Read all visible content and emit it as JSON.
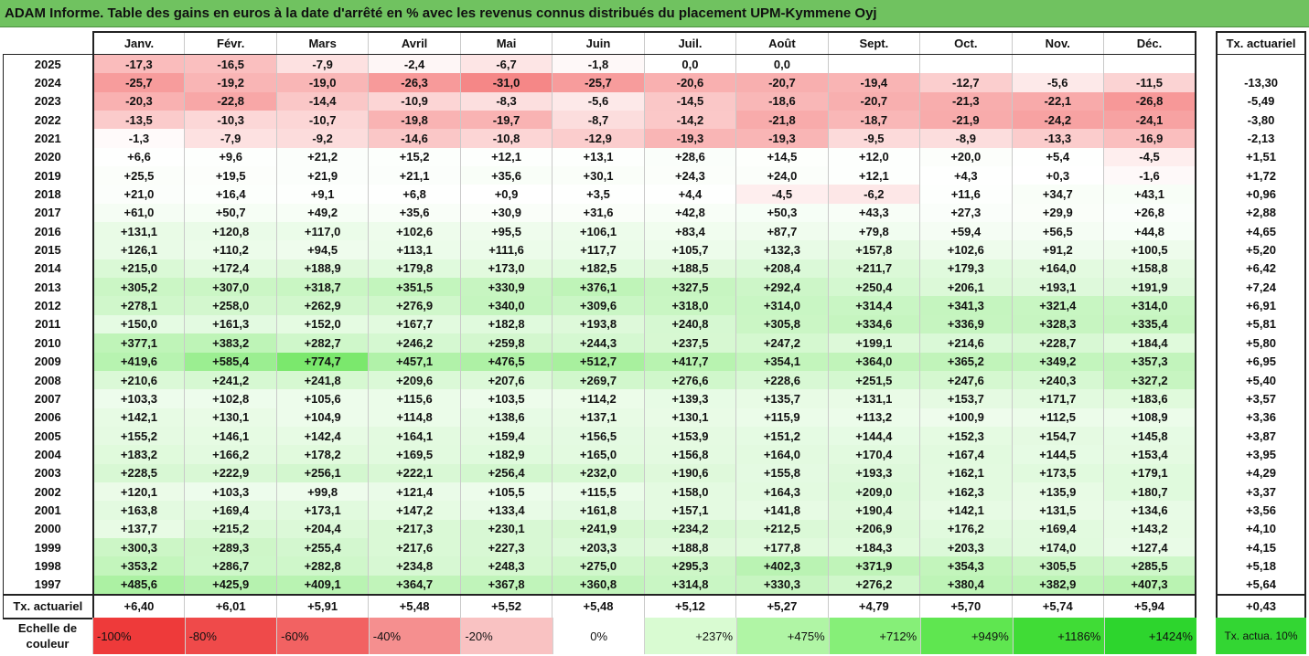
{
  "title": "ADAM Informe. Table des gains en euros à la date d'arrêté en % avec les revenus connus distribués du placement UPM-Kymmene Oyj",
  "chart_data": {
    "type": "table",
    "columns": [
      "Janv.",
      "Févr.",
      "Mars",
      "Avril",
      "Mai",
      "Juin",
      "Juil.",
      "Août",
      "Sept.",
      "Oct.",
      "Nov.",
      "Déc."
    ],
    "rate_header": "Tx. actuariel",
    "rows": [
      {
        "year": "2025",
        "values": [
          "-17,3",
          "-16,5",
          "-7,9",
          "-2,4",
          "-6,7",
          "-1,8",
          "0,0",
          "0,0",
          "",
          "",
          "",
          ""
        ],
        "rate": ""
      },
      {
        "year": "2024",
        "values": [
          "-25,7",
          "-19,2",
          "-19,0",
          "-26,3",
          "-31,0",
          "-25,7",
          "-20,6",
          "-20,7",
          "-19,4",
          "-12,7",
          "-5,6",
          "-11,5"
        ],
        "rate": "-13,30"
      },
      {
        "year": "2023",
        "values": [
          "-20,3",
          "-22,8",
          "-14,4",
          "-10,9",
          "-8,3",
          "-5,6",
          "-14,5",
          "-18,6",
          "-20,7",
          "-21,3",
          "-22,1",
          "-26,8"
        ],
        "rate": "-5,49"
      },
      {
        "year": "2022",
        "values": [
          "-13,5",
          "-10,3",
          "-10,7",
          "-19,8",
          "-19,7",
          "-8,7",
          "-14,2",
          "-21,8",
          "-18,7",
          "-21,9",
          "-24,2",
          "-24,1"
        ],
        "rate": "-3,80"
      },
      {
        "year": "2021",
        "values": [
          "-1,3",
          "-7,9",
          "-9,2",
          "-14,6",
          "-10,8",
          "-12,9",
          "-19,3",
          "-19,3",
          "-9,5",
          "-8,9",
          "-13,3",
          "-16,9"
        ],
        "rate": "-2,13"
      },
      {
        "year": "2020",
        "values": [
          "+6,6",
          "+9,6",
          "+21,2",
          "+15,2",
          "+12,1",
          "+13,1",
          "+28,6",
          "+14,5",
          "+12,0",
          "+20,0",
          "+5,4",
          "-4,5"
        ],
        "rate": "+1,51"
      },
      {
        "year": "2019",
        "values": [
          "+25,5",
          "+19,5",
          "+21,9",
          "+21,1",
          "+35,6",
          "+30,1",
          "+24,3",
          "+24,0",
          "+12,1",
          "+4,3",
          "+0,3",
          "-1,6"
        ],
        "rate": "+1,72"
      },
      {
        "year": "2018",
        "values": [
          "+21,0",
          "+16,4",
          "+9,1",
          "+6,8",
          "+0,9",
          "+3,5",
          "+4,4",
          "-4,5",
          "-6,2",
          "+11,6",
          "+34,7",
          "+43,1"
        ],
        "rate": "+0,96"
      },
      {
        "year": "2017",
        "values": [
          "+61,0",
          "+50,7",
          "+49,2",
          "+35,6",
          "+30,9",
          "+31,6",
          "+42,8",
          "+50,3",
          "+43,3",
          "+27,3",
          "+29,9",
          "+26,8"
        ],
        "rate": "+2,88"
      },
      {
        "year": "2016",
        "values": [
          "+131,1",
          "+120,8",
          "+117,0",
          "+102,6",
          "+95,5",
          "+106,1",
          "+83,4",
          "+87,7",
          "+79,8",
          "+59,4",
          "+56,5",
          "+44,8"
        ],
        "rate": "+4,65"
      },
      {
        "year": "2015",
        "values": [
          "+126,1",
          "+110,2",
          "+94,5",
          "+113,1",
          "+111,6",
          "+117,7",
          "+105,7",
          "+132,3",
          "+157,8",
          "+102,6",
          "+91,2",
          "+100,5"
        ],
        "rate": "+5,20"
      },
      {
        "year": "2014",
        "values": [
          "+215,0",
          "+172,4",
          "+188,9",
          "+179,8",
          "+173,0",
          "+182,5",
          "+188,5",
          "+208,4",
          "+211,7",
          "+179,3",
          "+164,0",
          "+158,8"
        ],
        "rate": "+6,42"
      },
      {
        "year": "2013",
        "values": [
          "+305,2",
          "+307,0",
          "+318,7",
          "+351,5",
          "+330,9",
          "+376,1",
          "+327,5",
          "+292,4",
          "+250,4",
          "+206,1",
          "+193,1",
          "+191,9"
        ],
        "rate": "+7,24"
      },
      {
        "year": "2012",
        "values": [
          "+278,1",
          "+258,0",
          "+262,9",
          "+276,9",
          "+340,0",
          "+309,6",
          "+318,0",
          "+314,0",
          "+314,4",
          "+341,3",
          "+321,4",
          "+314,0"
        ],
        "rate": "+6,91"
      },
      {
        "year": "2011",
        "values": [
          "+150,0",
          "+161,3",
          "+152,0",
          "+167,7",
          "+182,8",
          "+193,8",
          "+240,8",
          "+305,8",
          "+334,6",
          "+336,9",
          "+328,3",
          "+335,4"
        ],
        "rate": "+5,81"
      },
      {
        "year": "2010",
        "values": [
          "+377,1",
          "+383,2",
          "+282,7",
          "+246,2",
          "+259,8",
          "+244,3",
          "+237,5",
          "+247,2",
          "+199,1",
          "+214,6",
          "+228,7",
          "+184,4"
        ],
        "rate": "+5,80"
      },
      {
        "year": "2009",
        "values": [
          "+419,6",
          "+585,4",
          "+774,7",
          "+457,1",
          "+476,5",
          "+512,7",
          "+417,7",
          "+354,1",
          "+364,0",
          "+365,2",
          "+349,2",
          "+357,3"
        ],
        "rate": "+6,95"
      },
      {
        "year": "2008",
        "values": [
          "+210,6",
          "+241,2",
          "+241,8",
          "+209,6",
          "+207,6",
          "+269,7",
          "+276,6",
          "+228,6",
          "+251,5",
          "+247,6",
          "+240,3",
          "+327,2"
        ],
        "rate": "+5,40"
      },
      {
        "year": "2007",
        "values": [
          "+103,3",
          "+102,8",
          "+105,6",
          "+115,6",
          "+103,5",
          "+114,2",
          "+139,3",
          "+135,7",
          "+131,1",
          "+153,7",
          "+171,7",
          "+183,6"
        ],
        "rate": "+3,57"
      },
      {
        "year": "2006",
        "values": [
          "+142,1",
          "+130,1",
          "+104,9",
          "+114,8",
          "+138,6",
          "+137,1",
          "+130,1",
          "+115,9",
          "+113,2",
          "+100,9",
          "+112,5",
          "+108,9"
        ],
        "rate": "+3,36"
      },
      {
        "year": "2005",
        "values": [
          "+155,2",
          "+146,1",
          "+142,4",
          "+164,1",
          "+159,4",
          "+156,5",
          "+153,9",
          "+151,2",
          "+144,4",
          "+152,3",
          "+154,7",
          "+145,8"
        ],
        "rate": "+3,87"
      },
      {
        "year": "2004",
        "values": [
          "+183,2",
          "+166,2",
          "+178,2",
          "+169,5",
          "+182,9",
          "+165,0",
          "+156,8",
          "+164,0",
          "+170,4",
          "+167,4",
          "+144,5",
          "+153,4"
        ],
        "rate": "+3,95"
      },
      {
        "year": "2003",
        "values": [
          "+228,5",
          "+222,9",
          "+256,1",
          "+222,1",
          "+256,4",
          "+232,0",
          "+190,6",
          "+155,8",
          "+193,3",
          "+162,1",
          "+173,5",
          "+179,1"
        ],
        "rate": "+4,29"
      },
      {
        "year": "2002",
        "values": [
          "+120,1",
          "+103,3",
          "+99,8",
          "+121,4",
          "+105,5",
          "+115,5",
          "+158,0",
          "+164,3",
          "+209,0",
          "+162,3",
          "+135,9",
          "+180,7"
        ],
        "rate": "+3,37"
      },
      {
        "year": "2001",
        "values": [
          "+163,8",
          "+169,4",
          "+173,1",
          "+147,2",
          "+133,4",
          "+161,8",
          "+157,1",
          "+141,8",
          "+190,4",
          "+142,1",
          "+131,5",
          "+134,6"
        ],
        "rate": "+3,56"
      },
      {
        "year": "2000",
        "values": [
          "+137,7",
          "+215,2",
          "+204,4",
          "+217,3",
          "+230,1",
          "+241,9",
          "+234,2",
          "+212,5",
          "+206,9",
          "+176,2",
          "+169,4",
          "+143,2"
        ],
        "rate": "+4,10"
      },
      {
        "year": "1999",
        "values": [
          "+300,3",
          "+289,3",
          "+255,4",
          "+217,6",
          "+227,3",
          "+203,3",
          "+188,8",
          "+177,8",
          "+184,3",
          "+203,3",
          "+174,0",
          "+127,4"
        ],
        "rate": "+4,15"
      },
      {
        "year": "1998",
        "values": [
          "+353,2",
          "+286,7",
          "+282,8",
          "+234,8",
          "+248,3",
          "+275,0",
          "+295,3",
          "+402,3",
          "+371,9",
          "+354,3",
          "+305,5",
          "+285,5"
        ],
        "rate": "+5,18"
      },
      {
        "year": "1997",
        "values": [
          "+485,6",
          "+425,9",
          "+409,1",
          "+364,7",
          "+367,8",
          "+360,8",
          "+314,8",
          "+330,3",
          "+276,2",
          "+380,4",
          "+382,9",
          "+407,3"
        ],
        "rate": "+5,64"
      }
    ],
    "total_row": {
      "label": "Tx. actuariel",
      "values": [
        "+6,40",
        "+6,01",
        "+5,91",
        "+5,48",
        "+5,52",
        "+5,48",
        "+5,12",
        "+5,27",
        "+4,79",
        "+5,70",
        "+5,74",
        "+5,94"
      ],
      "rate": "+0,43"
    },
    "color_scale": {
      "label": "Echelle de couleur",
      "stops": [
        {
          "label": "-100%",
          "color": "#ee3a3a"
        },
        {
          "label": "-80%",
          "color": "#ef4a4a"
        },
        {
          "label": "-60%",
          "color": "#f26262"
        },
        {
          "label": "-40%",
          "color": "#f58f8f"
        },
        {
          "label": "-20%",
          "color": "#f9c2c2"
        },
        {
          "label": "0%",
          "color": "#ffffff"
        },
        {
          "label": "+237%",
          "color": "#d9fbd2"
        },
        {
          "label": "+475%",
          "color": "#b0f5a5"
        },
        {
          "label": "+712%",
          "color": "#86ef78"
        },
        {
          "label": "+949%",
          "color": "#5fe650"
        },
        {
          "label": "+1186%",
          "color": "#40dc36"
        },
        {
          "label": "+1424%",
          "color": "#2dd52d"
        }
      ],
      "side_label": "Tx. actua. 10%",
      "side_color": "#33d633"
    },
    "colors": {
      "title_bar": "#70c260",
      "negative": "#f26b6b",
      "positive": "#7fe870"
    }
  }
}
